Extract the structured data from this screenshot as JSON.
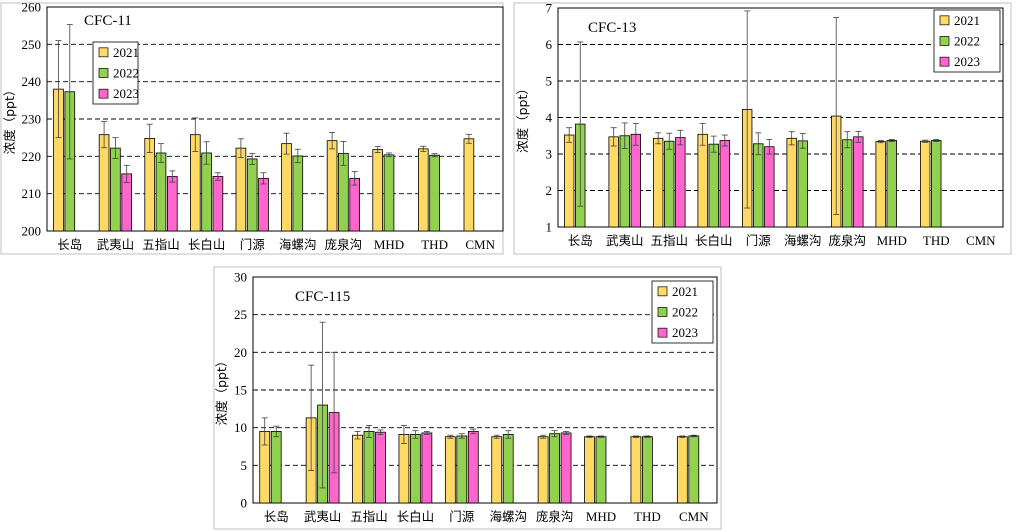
{
  "colors": {
    "2021": "#FFD966",
    "2022": "#92D050",
    "2023": "#FF66CC"
  },
  "chart_data": [
    {
      "type": "bar",
      "title": "CFC-11",
      "ylabel": "浓度（ppt）",
      "ylim": [
        200,
        260
      ],
      "yticks": [
        200,
        210,
        220,
        230,
        240,
        250,
        260
      ],
      "grid": true,
      "legend": "top-left",
      "categories": [
        "长岛",
        "武夷山",
        "五指山",
        "长白山",
        "门源",
        "海螺沟",
        "庞泉沟",
        "MHD",
        "THD",
        "CMN"
      ],
      "series": [
        {
          "name": "2021",
          "values": [
            238,
            225.8,
            224.8,
            225.8,
            222.2,
            223.4,
            224.2,
            221.8,
            222,
            224.7
          ],
          "errors": [
            13,
            3.5,
            3.8,
            4.5,
            2.5,
            2.8,
            2.2,
            0.8,
            0.7,
            1.2
          ]
        },
        {
          "name": "2022",
          "values": [
            237.3,
            222.2,
            220.9,
            220.9,
            219.3,
            220.1,
            220.8,
            220.4,
            220.3,
            null
          ],
          "errors": [
            18,
            2.8,
            2.5,
            3,
            1.5,
            1.8,
            3.2,
            0.5,
            0.4,
            null
          ]
        },
        {
          "name": "2023",
          "values": [
            null,
            215.3,
            214.6,
            214.6,
            214.1,
            null,
            214.1,
            null,
            null,
            null
          ],
          "errors": [
            null,
            2.3,
            1.5,
            1,
            1.5,
            null,
            1.8,
            null,
            null,
            null
          ]
        }
      ]
    },
    {
      "type": "bar",
      "title": "CFC-13",
      "ylabel": "浓度（ppt）",
      "ylim": [
        1,
        7
      ],
      "yticks": [
        1,
        2,
        3,
        4,
        5,
        6,
        7
      ],
      "grid": true,
      "legend": "top-right",
      "categories": [
        "长岛",
        "武夷山",
        "五指山",
        "长白山",
        "门源",
        "海螺沟",
        "庞泉沟",
        "MHD",
        "THD",
        "CMN"
      ],
      "series": [
        {
          "name": "2021",
          "values": [
            3.52,
            3.47,
            3.43,
            3.54,
            4.22,
            3.43,
            4.04,
            3.34,
            3.35,
            null
          ],
          "errors": [
            0.2,
            0.25,
            0.15,
            0.3,
            2.7,
            0.18,
            2.7,
            0.03,
            0.03,
            null
          ]
        },
        {
          "name": "2022",
          "values": [
            3.82,
            3.5,
            3.35,
            3.27,
            3.28,
            3.36,
            3.39,
            3.37,
            3.37,
            null
          ],
          "errors": [
            2.25,
            0.35,
            0.22,
            0.22,
            0.3,
            0.2,
            0.22,
            0.03,
            0.03,
            null
          ]
        },
        {
          "name": "2023",
          "values": [
            null,
            3.54,
            3.45,
            3.37,
            3.2,
            null,
            3.47,
            null,
            null,
            null
          ],
          "errors": [
            null,
            0.3,
            0.2,
            0.15,
            0.2,
            null,
            0.15,
            null,
            null,
            null
          ]
        }
      ]
    },
    {
      "type": "bar",
      "title": "CFC-115",
      "ylabel": "浓度（ppt）",
      "ylim": [
        0,
        30
      ],
      "yticks": [
        0,
        5,
        10,
        15,
        20,
        25,
        30
      ],
      "grid": true,
      "legend": "top-right",
      "categories": [
        "长岛",
        "武夷山",
        "五指山",
        "长白山",
        "门源",
        "海螺沟",
        "庞泉沟",
        "MHD",
        "THD",
        "CMN"
      ],
      "series": [
        {
          "name": "2021",
          "values": [
            9.5,
            11.3,
            9,
            9.1,
            8.8,
            8.8,
            8.8,
            8.8,
            8.8,
            8.8
          ],
          "errors": [
            1.8,
            7,
            0.5,
            1.2,
            0.2,
            0.2,
            0.2,
            0.1,
            0.1,
            0.1
          ]
        },
        {
          "name": "2022",
          "values": [
            9.5,
            13,
            9.5,
            9.1,
            8.9,
            9.1,
            9.2,
            8.8,
            8.8,
            8.9
          ],
          "errors": [
            0.7,
            11,
            0.8,
            0.5,
            0.3,
            0.5,
            0.4,
            0.1,
            0.1,
            0.1
          ]
        },
        {
          "name": "2023",
          "values": [
            null,
            12,
            9.4,
            9.3,
            9.5,
            null,
            9.3,
            null,
            null,
            null
          ],
          "errors": [
            null,
            8,
            0.3,
            0.2,
            0.3,
            null,
            0.2,
            null,
            null,
            null
          ]
        }
      ]
    }
  ]
}
